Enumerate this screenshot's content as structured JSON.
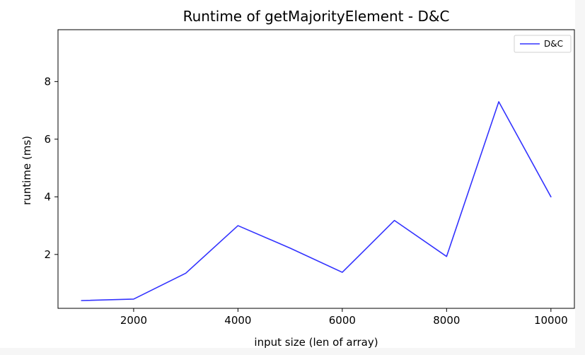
{
  "chart_data": {
    "type": "line",
    "title": "Runtime of getMajorityElement - D&C",
    "xlabel": "input size (len of array)",
    "ylabel": "runtime (ms)",
    "x": [
      1000,
      2000,
      3000,
      4000,
      5000,
      6000,
      7000,
      8000,
      9000,
      10000
    ],
    "series": [
      {
        "name": "D&C",
        "color": "#3333ff",
        "values": [
          0.4,
          0.45,
          1.35,
          3.0,
          2.22,
          1.38,
          3.18,
          1.93,
          7.3,
          4.0
        ]
      }
    ],
    "xlim": [
      550,
      10450
    ],
    "ylim": [
      0.13,
      9.8
    ],
    "xticks": [
      2000,
      4000,
      6000,
      8000,
      10000
    ],
    "yticks": [
      2,
      4,
      6,
      8
    ],
    "xtick_labels": [
      "2000",
      "4000",
      "6000",
      "8000",
      "10000"
    ],
    "ytick_labels": [
      "2",
      "4",
      "6",
      "8"
    ],
    "legend": {
      "position": "top-right",
      "entries": [
        "D&C"
      ]
    },
    "grid": false
  }
}
